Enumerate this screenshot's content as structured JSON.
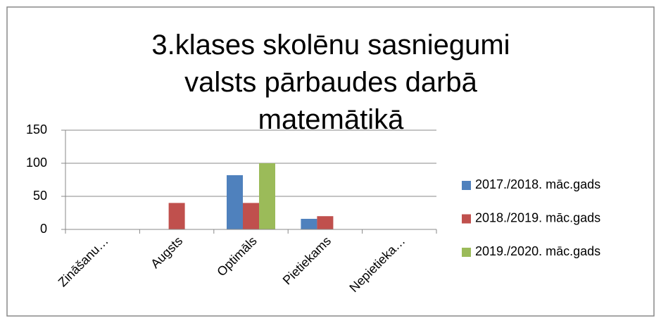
{
  "chart_data": {
    "type": "bar",
    "title": "3.klases skolēnu sasniegumi valsts pārbaudes darbā matemātikā",
    "categories": [
      "Zināšanu…",
      "Augsts",
      "Optimāls",
      "Pietiekams",
      "Nepietieka…"
    ],
    "series": [
      {
        "name": "2017./2018. māc.gads",
        "color": "#4f81bd",
        "values": [
          0,
          0,
          82,
          16,
          0
        ]
      },
      {
        "name": "2018./2019. māc.gads",
        "color": "#c0504d",
        "values": [
          0,
          40,
          40,
          20,
          0
        ]
      },
      {
        "name": "2019./2020. māc.gads",
        "color": "#9bbb59",
        "values": [
          0,
          0,
          100,
          0,
          0
        ]
      }
    ],
    "ylim": [
      0,
      150
    ],
    "yticks": [
      0,
      50,
      100,
      150
    ],
    "grid": true,
    "legend": "right"
  }
}
